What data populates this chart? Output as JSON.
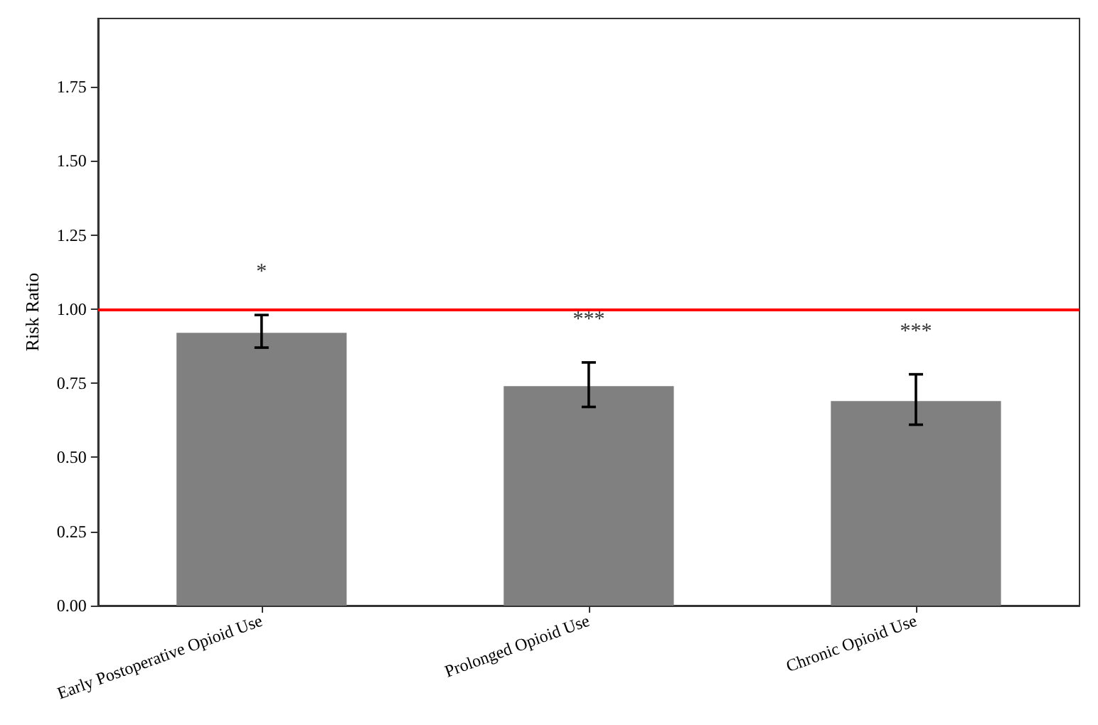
{
  "chart_data": {
    "type": "bar",
    "ylabel": "Risk Ratio",
    "categories": [
      "Early Postoperative Opioid Use",
      "Prolonged Opioid Use",
      "Chronic Opioid Use"
    ],
    "values": [
      0.92,
      0.74,
      0.69
    ],
    "color": "#808080",
    "errors": [
      [
        0.87,
        0.98
      ],
      [
        0.67,
        0.82
      ],
      [
        0.61,
        0.78
      ]
    ],
    "ylim": [
      0,
      1.98
    ],
    "yticks": [
      {
        "value": 0,
        "label": "0.00"
      },
      {
        "value": 0.25,
        "label": "0.25"
      },
      {
        "value": 0.5,
        "label": "0.50"
      },
      {
        "value": 0.75,
        "label": "0.75"
      },
      {
        "value": 1,
        "label": "1.00"
      },
      {
        "value": 1.25,
        "label": "1.25"
      },
      {
        "value": 1.5,
        "label": "1.50"
      },
      {
        "value": 1.75,
        "label": "1.75"
      }
    ],
    "ref_lines": [
      {
        "axis": "y",
        "value": 1,
        "color": "#ff0000"
      }
    ],
    "annotations": [
      "*",
      "***",
      "***"
    ],
    "grid": false
  }
}
